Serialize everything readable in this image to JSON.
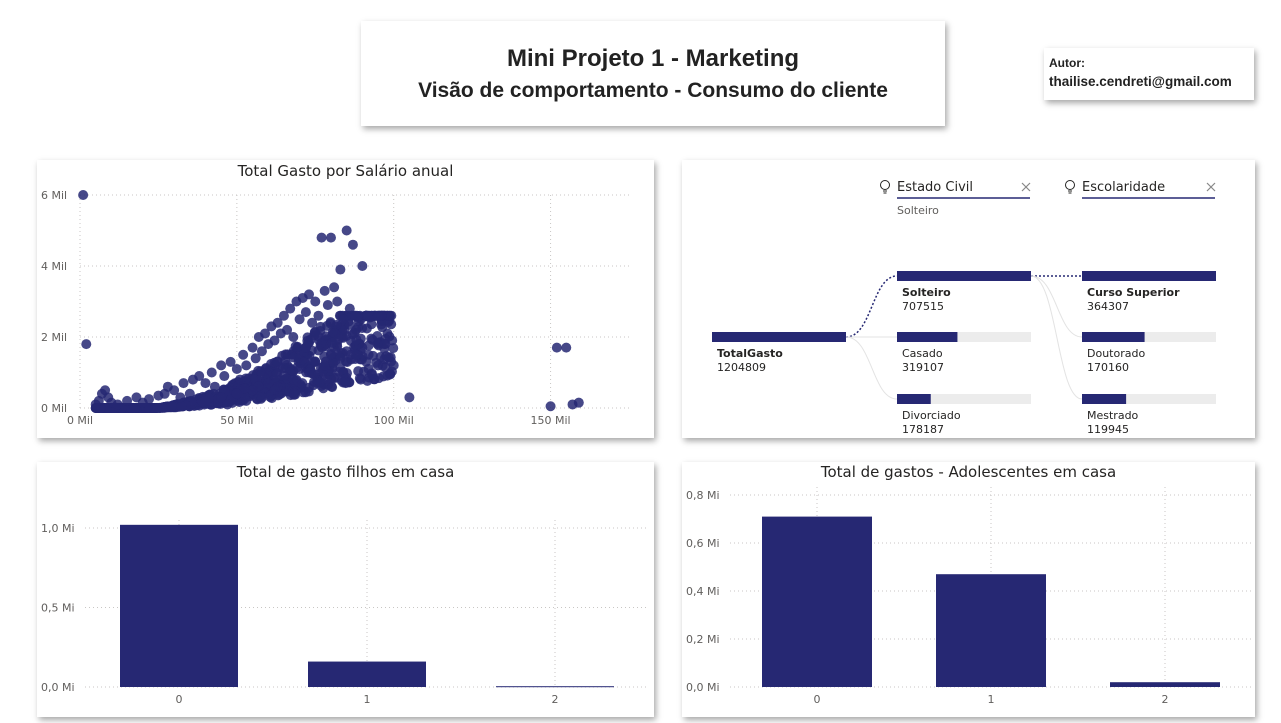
{
  "header": {
    "title_line1": "Mini Projeto 1 - Marketing",
    "title_line2": "Visão de comportamento - Consumo do cliente"
  },
  "author": {
    "label": "Autor:",
    "email": "thailise.cendreti@gmail.com"
  },
  "colors": {
    "primary": "#262873",
    "track": "#ececec",
    "grid": "#c8c6c4"
  },
  "scatter": {
    "chart_data": {
      "type": "scatter",
      "title": "Total Gasto por Salário anual",
      "xlim": [
        0,
        175000
      ],
      "ylim": [
        0,
        6000
      ],
      "x_ticks": [
        {
          "v": 0,
          "label": "0 Mil"
        },
        {
          "v": 50000,
          "label": "50 Mil"
        },
        {
          "v": 100000,
          "label": "100 Mil"
        },
        {
          "v": 150000,
          "label": "150 Mil"
        }
      ],
      "y_ticks": [
        {
          "v": 0,
          "label": "0 Mil"
        },
        {
          "v": 2000,
          "label": "2 Mil"
        },
        {
          "v": 4000,
          "label": "4 Mil"
        },
        {
          "v": 6000,
          "label": "6 Mil"
        }
      ],
      "points": [
        [
          1000,
          6000
        ],
        [
          2000,
          1800
        ],
        [
          5000,
          100
        ],
        [
          6000,
          200
        ],
        [
          7000,
          400
        ],
        [
          8000,
          500
        ],
        [
          9000,
          300
        ],
        [
          10000,
          150
        ],
        [
          12000,
          100
        ],
        [
          15000,
          200
        ],
        [
          18000,
          300
        ],
        [
          20000,
          150
        ],
        [
          22000,
          250
        ],
        [
          25000,
          350
        ],
        [
          27000,
          400
        ],
        [
          28000,
          600
        ],
        [
          30000,
          500
        ],
        [
          32000,
          300
        ],
        [
          33000,
          700
        ],
        [
          35000,
          400
        ],
        [
          36000,
          800
        ],
        [
          38000,
          900
        ],
        [
          40000,
          700
        ],
        [
          42000,
          1000
        ],
        [
          43000,
          600
        ],
        [
          45000,
          1200
        ],
        [
          46000,
          900
        ],
        [
          48000,
          1300
        ],
        [
          50000,
          1100
        ],
        [
          51000,
          800
        ],
        [
          52000,
          1500
        ],
        [
          53000,
          1200
        ],
        [
          55000,
          1700
        ],
        [
          56000,
          1400
        ],
        [
          57000,
          2000
        ],
        [
          58000,
          1600
        ],
        [
          59000,
          2100
        ],
        [
          60000,
          1800
        ],
        [
          61000,
          2300
        ],
        [
          62000,
          1900
        ],
        [
          63000,
          2400
        ],
        [
          64000,
          2100
        ],
        [
          65000,
          2600
        ],
        [
          66000,
          2200
        ],
        [
          67000,
          2800
        ],
        [
          68000,
          2000
        ],
        [
          69000,
          3000
        ],
        [
          70000,
          2500
        ],
        [
          71000,
          3100
        ],
        [
          72000,
          2700
        ],
        [
          73000,
          3200
        ],
        [
          74000,
          2400
        ],
        [
          75000,
          3000
        ],
        [
          76000,
          2600
        ],
        [
          77000,
          4800
        ],
        [
          78000,
          3300
        ],
        [
          79000,
          2900
        ],
        [
          80000,
          4800
        ],
        [
          81000,
          3400
        ],
        [
          82000,
          3000
        ],
        [
          83000,
          3900
        ],
        [
          84000,
          2500
        ],
        [
          85000,
          5000
        ],
        [
          86000,
          2800
        ],
        [
          87000,
          4600
        ],
        [
          88000,
          2200
        ],
        [
          89000,
          1800
        ],
        [
          90000,
          4000
        ],
        [
          92000,
          1500
        ],
        [
          95000,
          1200
        ],
        [
          97000,
          1800
        ],
        [
          100000,
          1200
        ],
        [
          105000,
          300
        ],
        [
          150000,
          50
        ],
        [
          152000,
          1700
        ],
        [
          155000,
          1700
        ],
        [
          157000,
          100
        ],
        [
          159000,
          150
        ],
        [
          40000,
          200
        ],
        [
          45000,
          300
        ],
        [
          50000,
          400
        ],
        [
          55000,
          500
        ],
        [
          60000,
          700
        ],
        [
          65000,
          900
        ],
        [
          70000,
          1100
        ],
        [
          75000,
          1300
        ],
        [
          80000,
          1500
        ],
        [
          85000,
          1600
        ],
        [
          90000,
          1700
        ],
        [
          47000,
          100
        ],
        [
          53000,
          200
        ],
        [
          58000,
          300
        ],
        [
          63000,
          600
        ],
        [
          68000,
          800
        ],
        [
          73000,
          1000
        ],
        [
          78000,
          1200
        ],
        [
          83000,
          1400
        ],
        [
          88000,
          1500
        ]
      ]
    }
  },
  "decomp": {
    "filter1": {
      "label": "Estado Civil",
      "selection": "Solteiro"
    },
    "filter2": {
      "label": "Escolaridade"
    },
    "root": {
      "label": "TotalGasto",
      "value": "1204809",
      "num": 1204809
    },
    "level1": [
      {
        "label": "Solteiro",
        "value": "707515",
        "num": 707515,
        "bold": true
      },
      {
        "label": "Casado",
        "value": "319107",
        "num": 319107,
        "bold": false
      },
      {
        "label": "Divorciado",
        "value": "178187",
        "num": 178187,
        "bold": false
      }
    ],
    "level2": [
      {
        "label": "Curso Superior",
        "value": "364307",
        "num": 364307,
        "bold": true
      },
      {
        "label": "Doutorado",
        "value": "170160",
        "num": 170160,
        "bold": false
      },
      {
        "label": "Mestrado",
        "value": "119945",
        "num": 119945,
        "bold": false
      }
    ]
  },
  "bar1": {
    "chart_data": {
      "type": "bar",
      "title": "Total de gasto filhos em casa",
      "categories": [
        "0",
        "1",
        "2"
      ],
      "values": [
        1.02,
        0.16,
        0.005
      ],
      "ylim": [
        0,
        1.0
      ],
      "y_ticks": [
        {
          "v": 0,
          "label": "0,0 Mi"
        },
        {
          "v": 0.5,
          "label": "0,5 Mi"
        },
        {
          "v": 1.0,
          "label": "1,0 Mi"
        }
      ]
    }
  },
  "bar2": {
    "chart_data": {
      "type": "bar",
      "title": "Total de gastos - Adolescentes em casa",
      "categories": [
        "0",
        "1",
        "2"
      ],
      "values": [
        0.71,
        0.47,
        0.02
      ],
      "ylim": [
        0,
        0.8
      ],
      "y_ticks": [
        {
          "v": 0,
          "label": "0,0 Mi"
        },
        {
          "v": 0.2,
          "label": "0,2 Mi"
        },
        {
          "v": 0.4,
          "label": "0,4 Mi"
        },
        {
          "v": 0.6,
          "label": "0,6 Mi"
        },
        {
          "v": 0.8,
          "label": "0,8 Mi"
        }
      ]
    }
  }
}
